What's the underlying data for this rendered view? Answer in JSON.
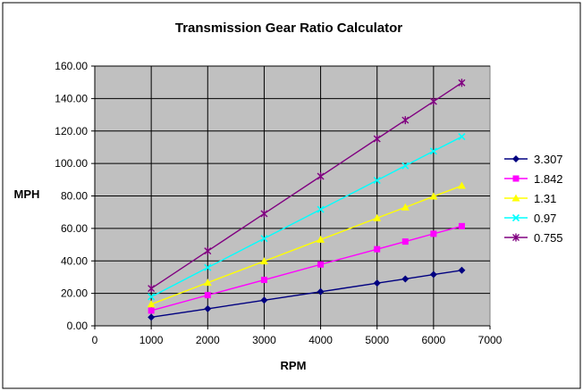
{
  "chart_data": {
    "type": "line",
    "title": "Transmission Gear Ratio Calculator",
    "xlabel": "RPM",
    "ylabel": "MPH",
    "xlim": [
      0,
      7000
    ],
    "ylim": [
      0,
      160
    ],
    "x_ticks": [
      "0",
      "1000",
      "2000",
      "3000",
      "4000",
      "5000",
      "6000",
      "7000"
    ],
    "y_ticks": [
      "0.00",
      "20.00",
      "40.00",
      "60.00",
      "80.00",
      "100.00",
      "120.00",
      "140.00",
      "160.00"
    ],
    "x_tick_values": [
      0,
      1000,
      2000,
      3000,
      4000,
      5000,
      6000,
      7000
    ],
    "y_tick_values": [
      0,
      20,
      40,
      60,
      80,
      100,
      120,
      140,
      160
    ],
    "grid": true,
    "legend_position": "right",
    "plot_background": "#c0c0c0",
    "x": [
      1000,
      2000,
      3000,
      4000,
      5000,
      5500,
      6000,
      6500
    ],
    "series": [
      {
        "name": "3.307",
        "color": "#000080",
        "marker": "diamond",
        "values": [
          5.3,
          10.5,
          15.8,
          21.0,
          26.3,
          28.9,
          31.6,
          34.2
        ]
      },
      {
        "name": "1.842",
        "color": "#ff00ff",
        "marker": "square",
        "values": [
          9.4,
          18.9,
          28.3,
          37.8,
          47.2,
          51.9,
          56.7,
          61.4
        ]
      },
      {
        "name": "1.31",
        "color": "#ffff00",
        "marker": "triangle",
        "values": [
          13.3,
          26.6,
          39.8,
          53.1,
          66.4,
          73.0,
          79.7,
          86.3
        ]
      },
      {
        "name": "0.97",
        "color": "#00ffff",
        "marker": "x",
        "values": [
          17.9,
          35.9,
          53.8,
          71.7,
          89.6,
          98.6,
          107.6,
          116.5
        ]
      },
      {
        "name": "0.755",
        "color": "#800080",
        "marker": "star",
        "values": [
          23.0,
          46.1,
          69.1,
          92.1,
          115.2,
          126.7,
          138.2,
          149.7
        ]
      }
    ]
  }
}
